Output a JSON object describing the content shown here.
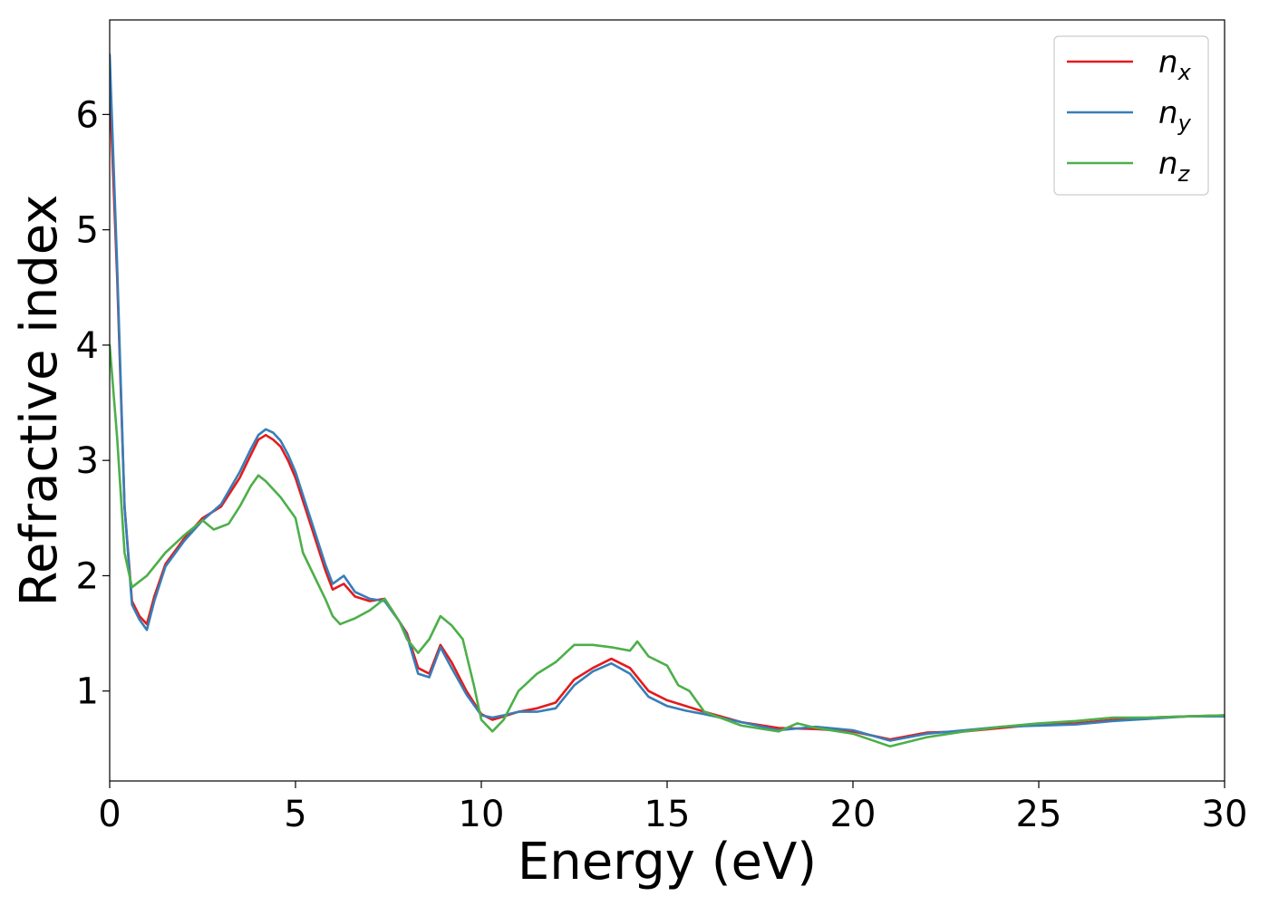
{
  "chart_data": {
    "type": "line",
    "xlabel": "Energy (eV)",
    "ylabel": "Refractive index",
    "xlim": [
      0,
      30
    ],
    "ylim": [
      0.22,
      6.82
    ],
    "x_ticks": [
      0,
      5,
      10,
      15,
      20,
      25,
      30
    ],
    "y_ticks": [
      1,
      2,
      3,
      4,
      5,
      6
    ],
    "grid": false,
    "legend_position": "top-right",
    "series": [
      {
        "name": "n_x",
        "label_base": "n",
        "label_sub": "x",
        "color": "#e41a1c",
        "points": [
          [
            0,
            6.25
          ],
          [
            0.2,
            4.6
          ],
          [
            0.4,
            2.6
          ],
          [
            0.6,
            1.78
          ],
          [
            0.8,
            1.65
          ],
          [
            1.0,
            1.58
          ],
          [
            1.2,
            1.82
          ],
          [
            1.5,
            2.1
          ],
          [
            2.0,
            2.32
          ],
          [
            2.5,
            2.5
          ],
          [
            3.0,
            2.6
          ],
          [
            3.5,
            2.85
          ],
          [
            3.8,
            3.05
          ],
          [
            4.0,
            3.18
          ],
          [
            4.2,
            3.22
          ],
          [
            4.4,
            3.18
          ],
          [
            4.6,
            3.12
          ],
          [
            4.8,
            3.0
          ],
          [
            5.0,
            2.85
          ],
          [
            5.2,
            2.65
          ],
          [
            5.5,
            2.35
          ],
          [
            5.8,
            2.05
          ],
          [
            6.0,
            1.88
          ],
          [
            6.3,
            1.93
          ],
          [
            6.6,
            1.82
          ],
          [
            7.0,
            1.78
          ],
          [
            7.4,
            1.8
          ],
          [
            7.8,
            1.6
          ],
          [
            8.0,
            1.5
          ],
          [
            8.3,
            1.2
          ],
          [
            8.6,
            1.15
          ],
          [
            8.9,
            1.4
          ],
          [
            9.2,
            1.25
          ],
          [
            9.6,
            1.0
          ],
          [
            10.0,
            0.8
          ],
          [
            10.3,
            0.75
          ],
          [
            10.6,
            0.78
          ],
          [
            11.0,
            0.82
          ],
          [
            11.5,
            0.85
          ],
          [
            12.0,
            0.9
          ],
          [
            12.5,
            1.1
          ],
          [
            13.0,
            1.2
          ],
          [
            13.5,
            1.28
          ],
          [
            14.0,
            1.2
          ],
          [
            14.5,
            1.0
          ],
          [
            15.0,
            0.92
          ],
          [
            15.5,
            0.87
          ],
          [
            16.0,
            0.82
          ],
          [
            17.0,
            0.73
          ],
          [
            18.0,
            0.68
          ],
          [
            19.0,
            0.67
          ],
          [
            20.0,
            0.65
          ],
          [
            21.0,
            0.58
          ],
          [
            22.0,
            0.64
          ],
          [
            23.0,
            0.65
          ],
          [
            24.0,
            0.68
          ],
          [
            25.0,
            0.71
          ],
          [
            26.0,
            0.72
          ],
          [
            27.0,
            0.75
          ],
          [
            28.0,
            0.77
          ],
          [
            29.0,
            0.78
          ],
          [
            30.0,
            0.79
          ]
        ]
      },
      {
        "name": "n_y",
        "label_base": "n",
        "label_sub": "y",
        "color": "#377eb8",
        "points": [
          [
            0,
            6.52
          ],
          [
            0.2,
            4.7
          ],
          [
            0.4,
            2.6
          ],
          [
            0.6,
            1.75
          ],
          [
            0.8,
            1.62
          ],
          [
            1.0,
            1.53
          ],
          [
            1.2,
            1.78
          ],
          [
            1.5,
            2.08
          ],
          [
            2.0,
            2.3
          ],
          [
            2.5,
            2.48
          ],
          [
            3.0,
            2.62
          ],
          [
            3.5,
            2.9
          ],
          [
            3.8,
            3.1
          ],
          [
            4.0,
            3.22
          ],
          [
            4.2,
            3.27
          ],
          [
            4.4,
            3.24
          ],
          [
            4.6,
            3.17
          ],
          [
            4.8,
            3.05
          ],
          [
            5.0,
            2.9
          ],
          [
            5.2,
            2.7
          ],
          [
            5.5,
            2.4
          ],
          [
            5.8,
            2.1
          ],
          [
            6.0,
            1.93
          ],
          [
            6.3,
            2.0
          ],
          [
            6.6,
            1.86
          ],
          [
            7.0,
            1.8
          ],
          [
            7.4,
            1.78
          ],
          [
            7.8,
            1.6
          ],
          [
            8.0,
            1.48
          ],
          [
            8.3,
            1.15
          ],
          [
            8.6,
            1.12
          ],
          [
            8.9,
            1.38
          ],
          [
            9.2,
            1.2
          ],
          [
            9.6,
            0.97
          ],
          [
            10.0,
            0.79
          ],
          [
            10.3,
            0.77
          ],
          [
            10.6,
            0.79
          ],
          [
            11.0,
            0.82
          ],
          [
            11.5,
            0.82
          ],
          [
            12.0,
            0.85
          ],
          [
            12.5,
            1.05
          ],
          [
            13.0,
            1.17
          ],
          [
            13.5,
            1.24
          ],
          [
            14.0,
            1.15
          ],
          [
            14.5,
            0.95
          ],
          [
            15.0,
            0.87
          ],
          [
            15.5,
            0.83
          ],
          [
            16.0,
            0.8
          ],
          [
            17.0,
            0.73
          ],
          [
            18.0,
            0.66
          ],
          [
            19.0,
            0.69
          ],
          [
            20.0,
            0.66
          ],
          [
            21.0,
            0.57
          ],
          [
            22.0,
            0.63
          ],
          [
            23.0,
            0.66
          ],
          [
            24.0,
            0.69
          ],
          [
            25.0,
            0.7
          ],
          [
            26.0,
            0.71
          ],
          [
            27.0,
            0.74
          ],
          [
            28.0,
            0.76
          ],
          [
            29.0,
            0.78
          ],
          [
            30.0,
            0.78
          ]
        ]
      },
      {
        "name": "n_z",
        "label_base": "n",
        "label_sub": "z",
        "color": "#4daf4a",
        "points": [
          [
            0,
            4.0
          ],
          [
            0.2,
            3.2
          ],
          [
            0.4,
            2.2
          ],
          [
            0.6,
            1.9
          ],
          [
            0.8,
            1.95
          ],
          [
            1.0,
            2.0
          ],
          [
            1.5,
            2.2
          ],
          [
            2.0,
            2.35
          ],
          [
            2.5,
            2.48
          ],
          [
            2.8,
            2.4
          ],
          [
            3.2,
            2.45
          ],
          [
            3.5,
            2.6
          ],
          [
            3.8,
            2.78
          ],
          [
            4.0,
            2.87
          ],
          [
            4.2,
            2.82
          ],
          [
            4.4,
            2.75
          ],
          [
            4.6,
            2.68
          ],
          [
            5.0,
            2.5
          ],
          [
            5.2,
            2.2
          ],
          [
            5.5,
            2.0
          ],
          [
            5.8,
            1.8
          ],
          [
            6.0,
            1.65
          ],
          [
            6.2,
            1.58
          ],
          [
            6.6,
            1.63
          ],
          [
            7.0,
            1.7
          ],
          [
            7.4,
            1.8
          ],
          [
            7.8,
            1.6
          ],
          [
            8.0,
            1.45
          ],
          [
            8.3,
            1.33
          ],
          [
            8.6,
            1.45
          ],
          [
            8.9,
            1.65
          ],
          [
            9.2,
            1.57
          ],
          [
            9.5,
            1.45
          ],
          [
            9.8,
            1.05
          ],
          [
            10.0,
            0.75
          ],
          [
            10.3,
            0.65
          ],
          [
            10.6,
            0.75
          ],
          [
            11.0,
            1.0
          ],
          [
            11.5,
            1.15
          ],
          [
            12.0,
            1.25
          ],
          [
            12.5,
            1.4
          ],
          [
            13.0,
            1.4
          ],
          [
            13.5,
            1.38
          ],
          [
            14.0,
            1.35
          ],
          [
            14.2,
            1.43
          ],
          [
            14.5,
            1.3
          ],
          [
            15.0,
            1.22
          ],
          [
            15.3,
            1.05
          ],
          [
            15.6,
            1.0
          ],
          [
            16.0,
            0.82
          ],
          [
            17.0,
            0.7
          ],
          [
            18.0,
            0.65
          ],
          [
            18.5,
            0.72
          ],
          [
            19.0,
            0.68
          ],
          [
            20.0,
            0.63
          ],
          [
            21.0,
            0.52
          ],
          [
            22.0,
            0.6
          ],
          [
            23.0,
            0.65
          ],
          [
            24.0,
            0.69
          ],
          [
            25.0,
            0.72
          ],
          [
            26.0,
            0.74
          ],
          [
            27.0,
            0.77
          ],
          [
            28.0,
            0.77
          ],
          [
            29.0,
            0.78
          ],
          [
            30.0,
            0.79
          ]
        ]
      }
    ]
  }
}
